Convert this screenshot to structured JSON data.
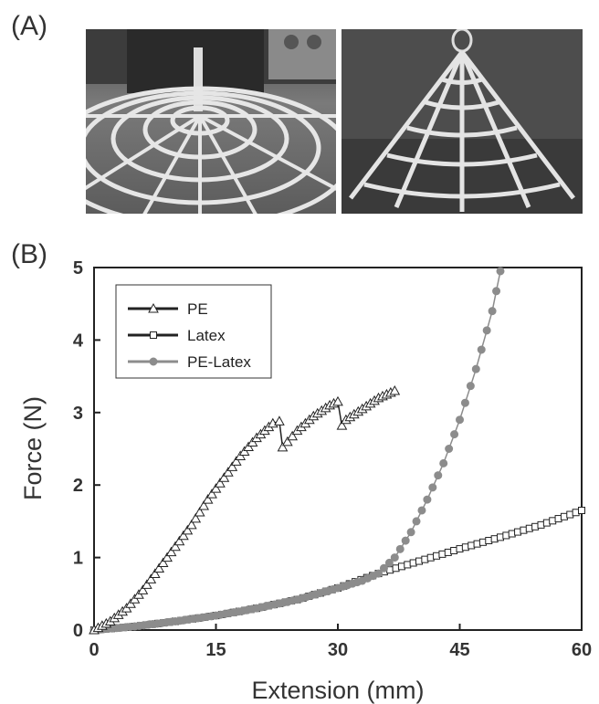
{
  "panels": {
    "a_label": "(A)",
    "b_label": "(B)"
  },
  "photos": {
    "left": {
      "description_icon": "spider-web-model-photo"
    },
    "right": {
      "description_icon": "spider-web-lifted-photo"
    }
  },
  "chart_data": {
    "type": "scatter",
    "xlabel": "Extension (mm)",
    "ylabel": "Force (N)",
    "xlim": [
      0,
      60
    ],
    "ylim": [
      0,
      5
    ],
    "xticks": [
      0,
      15,
      30,
      45,
      60
    ],
    "yticks": [
      0,
      1,
      2,
      3,
      4,
      5
    ],
    "grid": false,
    "legend_position": "top-left",
    "series": [
      {
        "name": "PE",
        "marker": "triangle-open",
        "color": "#222222",
        "x": [
          0,
          2,
          4,
          6,
          8,
          10,
          12,
          14,
          16,
          18,
          20,
          22,
          22.8,
          23.2,
          25,
          27,
          29,
          30,
          30.5,
          31,
          33,
          35,
          37
        ],
        "y": [
          0,
          0.12,
          0.3,
          0.55,
          0.85,
          1.15,
          1.45,
          1.8,
          2.1,
          2.4,
          2.65,
          2.85,
          2.88,
          2.52,
          2.75,
          2.95,
          3.1,
          3.15,
          2.82,
          2.9,
          3.05,
          3.2,
          3.3
        ]
      },
      {
        "name": "Latex",
        "marker": "square-open",
        "color": "#222222",
        "x": [
          0,
          5,
          10,
          15,
          20,
          25,
          30,
          35,
          40,
          45,
          50,
          55,
          60
        ],
        "y": [
          0,
          0.05,
          0.12,
          0.2,
          0.3,
          0.42,
          0.58,
          0.78,
          0.95,
          1.12,
          1.28,
          1.45,
          1.65
        ]
      },
      {
        "name": "PE-Latex",
        "marker": "circle-filled",
        "color": "#8c8c8c",
        "x": [
          0,
          5,
          10,
          15,
          20,
          25,
          30,
          33,
          35,
          37,
          39,
          41,
          43,
          45,
          47,
          49,
          50
        ],
        "y": [
          0,
          0.05,
          0.12,
          0.2,
          0.3,
          0.42,
          0.58,
          0.68,
          0.78,
          1.0,
          1.35,
          1.8,
          2.3,
          2.9,
          3.6,
          4.4,
          4.95
        ]
      }
    ]
  }
}
